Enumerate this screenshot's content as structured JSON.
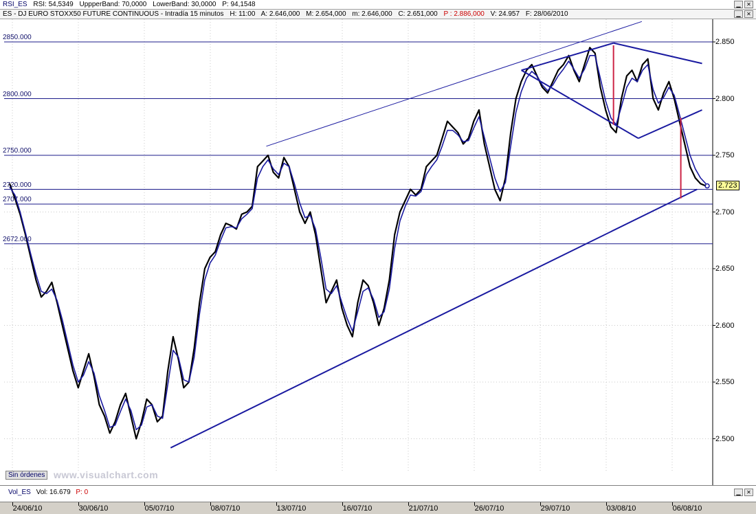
{
  "indicator_bar": {
    "name": "RSI_ES",
    "rsi": "RSI: 54,5349",
    "upper": "UppperBand: 70,0000",
    "lower": "LowerBand: 30,0000",
    "p": "P: 94,1548"
  },
  "title_bar": {
    "symbol": "ES - DJ EURO STOXX50 FUTURE CONTINUOUS - Intradía 15 minutos",
    "h": "H: 11:00",
    "a": "A: 2.646,000",
    "m": "M: 2.654,000",
    "m2": "m: 2.646,000",
    "c": "C: 2.651,000",
    "p": "P : 2.886,000",
    "v": "V: 24.957",
    "f": "F: 28/06/2010",
    "colors": {
      "p": "#cc0000",
      "text": "#000000"
    }
  },
  "window_buttons": [
    "minimize-icon",
    "close-icon"
  ],
  "chart_data": {
    "type": "line",
    "title": "",
    "xlabel": "",
    "ylabel": "",
    "ylim": [
      2470,
      2870
    ],
    "y_ticks": [
      "2.850",
      "2.800",
      "2.750",
      "2.700",
      "2.650",
      "2.600",
      "2.550",
      "2.500"
    ],
    "y_tick_values": [
      2850,
      2800,
      2750,
      2700,
      2650,
      2600,
      2550,
      2500
    ],
    "x_tick_labels": [
      "24/06/10",
      "30/06/10",
      "05/07/10",
      "08/07/10",
      "13/07/10",
      "16/07/10",
      "21/07/10",
      "26/07/10",
      "29/07/10",
      "03/08/10",
      "06/08/10"
    ],
    "horizontal_levels": [
      {
        "label": "2850.000",
        "value": 2850
      },
      {
        "label": "2800.000",
        "value": 2800
      },
      {
        "label": "2750.000",
        "value": 2750
      },
      {
        "label": "2720.000",
        "value": 2720
      },
      {
        "label": "2707.000",
        "value": 2707
      },
      {
        "label": "2672.000",
        "value": 2672
      }
    ],
    "last_price": "2.723",
    "series": [
      {
        "color": "#000000",
        "values": [
          2725,
          2712,
          2698,
          2680,
          2660,
          2640,
          2625,
          2630,
          2638,
          2620,
          2600,
          2580,
          2560,
          2545,
          2560,
          2575,
          2555,
          2530,
          2520,
          2505,
          2515,
          2530,
          2540,
          2520,
          2500,
          2515,
          2535,
          2530,
          2515,
          2520,
          2560,
          2590,
          2570,
          2545,
          2550,
          2580,
          2620,
          2650,
          2660,
          2665,
          2680,
          2690,
          2688,
          2685,
          2698,
          2700,
          2705,
          2740,
          2745,
          2750,
          2735,
          2730,
          2748,
          2740,
          2720,
          2700,
          2690,
          2700,
          2680,
          2650,
          2620,
          2630,
          2640,
          2615,
          2600,
          2590,
          2620,
          2640,
          2635,
          2620,
          2600,
          2615,
          2640,
          2680,
          2700,
          2710,
          2720,
          2715,
          2720,
          2740,
          2745,
          2750,
          2765,
          2780,
          2775,
          2770,
          2760,
          2765,
          2780,
          2790,
          2760,
          2740,
          2720,
          2710,
          2730,
          2770,
          2800,
          2815,
          2825,
          2830,
          2820,
          2810,
          2805,
          2815,
          2825,
          2830,
          2838,
          2825,
          2815,
          2830,
          2845,
          2840,
          2810,
          2790,
          2775,
          2770,
          2800,
          2820,
          2825,
          2815,
          2830,
          2835,
          2800,
          2790,
          2805,
          2815,
          2800,
          2780,
          2760,
          2740,
          2730,
          2725,
          2723
        ]
      },
      {
        "color": "#1a1aa0",
        "values": [
          2722,
          2715,
          2700,
          2682,
          2663,
          2645,
          2630,
          2628,
          2632,
          2622,
          2605,
          2585,
          2565,
          2550,
          2556,
          2568,
          2558,
          2538,
          2525,
          2510,
          2512,
          2524,
          2535,
          2525,
          2508,
          2512,
          2528,
          2530,
          2520,
          2518,
          2548,
          2578,
          2572,
          2552,
          2550,
          2572,
          2610,
          2640,
          2655,
          2662,
          2675,
          2686,
          2687,
          2686,
          2694,
          2698,
          2703,
          2730,
          2740,
          2746,
          2738,
          2733,
          2743,
          2740,
          2725,
          2708,
          2695,
          2697,
          2685,
          2660,
          2632,
          2628,
          2635,
          2620,
          2606,
          2595,
          2612,
          2630,
          2633,
          2623,
          2607,
          2612,
          2632,
          2668,
          2692,
          2705,
          2715,
          2714,
          2718,
          2733,
          2740,
          2746,
          2758,
          2772,
          2772,
          2768,
          2762,
          2763,
          2774,
          2784,
          2766,
          2748,
          2730,
          2718,
          2726,
          2758,
          2788,
          2806,
          2818,
          2824,
          2820,
          2812,
          2807,
          2812,
          2820,
          2826,
          2833,
          2826,
          2818,
          2826,
          2838,
          2838,
          2818,
          2798,
          2783,
          2777,
          2793,
          2810,
          2818,
          2815,
          2825,
          2830,
          2808,
          2796,
          2801,
          2810,
          2803,
          2786,
          2768,
          2750,
          2738,
          2730,
          2725
        ]
      }
    ],
    "trendlines": [
      {
        "color": "#1a1aa0",
        "points": [
          [
            0.235,
            2492
          ],
          [
            0.978,
            2720
          ]
        ]
      },
      {
        "color": "#1a1aa0",
        "points": [
          [
            0.37,
            2758
          ],
          [
            0.9,
            2868
          ]
        ]
      },
      {
        "color": "#1a1aa0",
        "points": [
          [
            0.73,
            2825
          ],
          [
            0.86,
            2849
          ]
        ]
      },
      {
        "color": "#1a1aa0",
        "points": [
          [
            0.86,
            2849
          ],
          [
            0.985,
            2831
          ]
        ]
      },
      {
        "color": "#1a1aa0",
        "points": [
          [
            0.73,
            2825
          ],
          [
            0.895,
            2765
          ]
        ]
      },
      {
        "color": "#1a1aa0",
        "points": [
          [
            0.895,
            2765
          ],
          [
            0.985,
            2790
          ]
        ]
      }
    ],
    "vertical_marks": [
      {
        "color": "#cc2244",
        "x": 0.86,
        "from": 2847,
        "to": 2777
      },
      {
        "color": "#cc2244",
        "x": 0.955,
        "from": 2783,
        "to": 2712
      }
    ]
  },
  "badge": {
    "label": "Sin órdenes"
  },
  "watermark": "www.visualchart.com",
  "volume": {
    "name": "Vol_ES",
    "vol": "Vol: 16.679",
    "p": "P: 0",
    "p_color": "#cc0000"
  }
}
